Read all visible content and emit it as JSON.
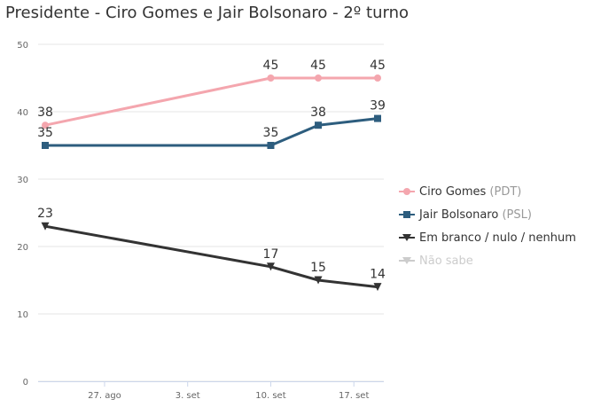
{
  "chart_data": {
    "type": "line",
    "title": "Presidente - Ciro Gomes e Jair Bolsonaro - 2º turno",
    "x_dates": [
      "2018-08-22",
      "2018-09-10",
      "2018-09-14",
      "2018-09-19"
    ],
    "x_ticks": [
      {
        "date": "2018-08-27",
        "label": "27. ago"
      },
      {
        "date": "2018-09-03",
        "label": "3. set"
      },
      {
        "date": "2018-09-10",
        "label": "10. set"
      },
      {
        "date": "2018-09-17",
        "label": "17. set"
      }
    ],
    "y_ticks": [
      "0",
      "10",
      "20",
      "30",
      "40",
      "50"
    ],
    "ylim": [
      0,
      50
    ],
    "grid": "horizontal",
    "legend_position": "right",
    "series": [
      {
        "name": "Ciro Gomes",
        "party": "(PDT)",
        "color": "#f4a6ae",
        "marker": "circle",
        "values": [
          38,
          45,
          45,
          45
        ],
        "labels": [
          "38",
          "45",
          "45",
          "45"
        ],
        "visible": true
      },
      {
        "name": "Jair Bolsonaro",
        "party": "(PSL)",
        "color": "#2d5d7e",
        "marker": "square",
        "values": [
          35,
          35,
          38,
          39
        ],
        "labels": [
          "35",
          "35",
          "38",
          "39"
        ],
        "visible": true
      },
      {
        "name": "Em branco / nulo / nenhum",
        "party": "",
        "color": "#333333",
        "marker": "triangle-down",
        "values": [
          23,
          17,
          15,
          14
        ],
        "labels": [
          "23",
          "17",
          "15",
          "14"
        ],
        "visible": true
      },
      {
        "name": "Não sabe",
        "party": "",
        "color": "#cccccc",
        "marker": "triangle-down",
        "values": [],
        "labels": [],
        "visible": false
      }
    ]
  }
}
